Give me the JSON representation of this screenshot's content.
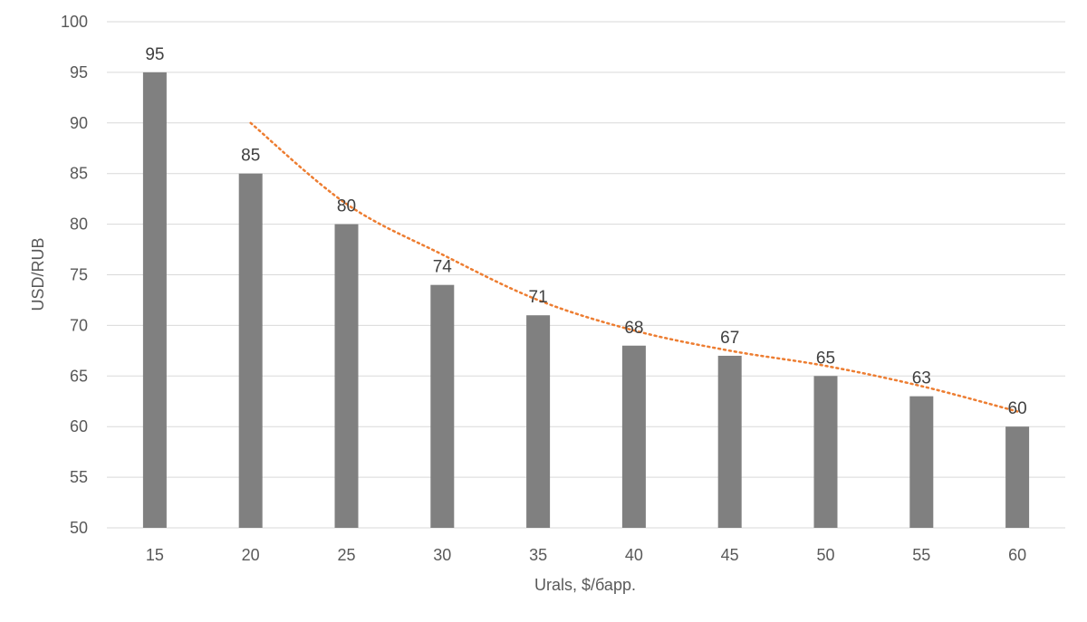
{
  "chart_data": {
    "type": "bar",
    "title": "",
    "xlabel": "Urals, $/барр.",
    "ylabel": "USD/RUB",
    "categories": [
      "15",
      "20",
      "25",
      "30",
      "35",
      "40",
      "45",
      "50",
      "55",
      "60"
    ],
    "values": [
      95,
      85,
      80,
      74,
      71,
      68,
      67,
      65,
      63,
      60
    ],
    "data_labels": [
      "95",
      "85",
      "80",
      "74",
      "71",
      "68",
      "67",
      "65",
      "63",
      "60"
    ],
    "ylim": [
      50,
      100
    ],
    "yticks": [
      "50",
      "55",
      "60",
      "65",
      "70",
      "75",
      "80",
      "85",
      "90",
      "95",
      "100"
    ],
    "grid": true,
    "legend": "none",
    "bar_color": "#808080",
    "trendline": {
      "type": "smooth curve",
      "color": "#ed7d31",
      "style": "dotted",
      "x": [
        "20",
        "25",
        "30",
        "35",
        "40",
        "45",
        "50",
        "55",
        "60"
      ],
      "y": [
        90,
        82,
        77,
        72.5,
        69.5,
        67.5,
        66,
        64,
        61.5
      ]
    }
  }
}
